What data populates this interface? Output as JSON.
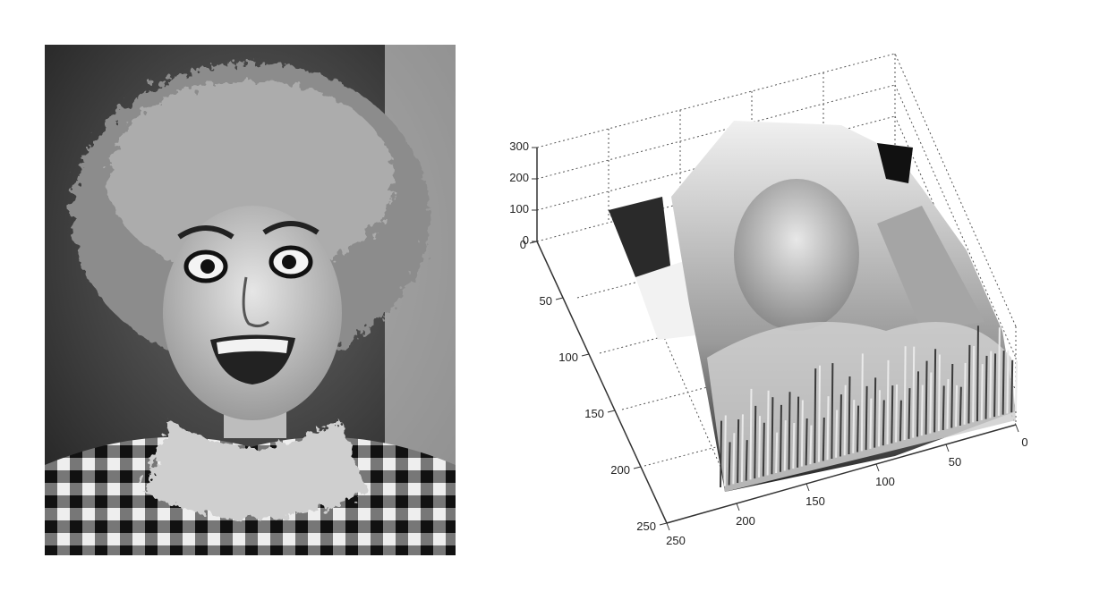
{
  "photo": {
    "subject": "grayscale portrait photo"
  },
  "chart_data": {
    "type": "surface",
    "title": "",
    "zlabel": "",
    "z_ticks": [
      "300",
      "200",
      "100",
      "0"
    ],
    "zlim": [
      0,
      300
    ],
    "y_ticks": [
      "0",
      "50",
      "100",
      "150",
      "200",
      "250"
    ],
    "ylim": [
      0,
      250
    ],
    "x_ticks": [
      "250",
      "200",
      "150",
      "100",
      "50",
      "0"
    ],
    "xlim": [
      0,
      250
    ],
    "grid": true,
    "colormap": "gray"
  }
}
